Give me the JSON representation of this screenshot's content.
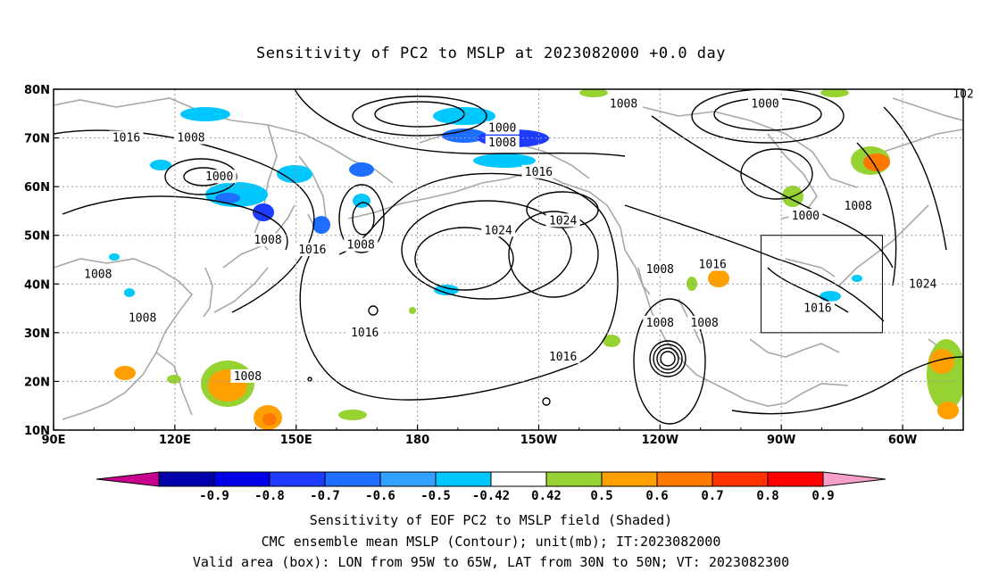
{
  "title": "Sensitivity of PC2 to MSLP at 2023082000 +0.0 day",
  "axes": {
    "x_ticks": [
      {
        "lon": 90,
        "label": "90E"
      },
      {
        "lon": 120,
        "label": "120E"
      },
      {
        "lon": 150,
        "label": "150E"
      },
      {
        "lon": 180,
        "label": "180"
      },
      {
        "lon": 210,
        "label": "150W"
      },
      {
        "lon": 240,
        "label": "120W"
      },
      {
        "lon": 270,
        "label": "90W"
      },
      {
        "lon": 300,
        "label": "60W"
      }
    ],
    "y_ticks": [
      {
        "lat": 10,
        "label": "10N"
      },
      {
        "lat": 20,
        "label": "20N"
      },
      {
        "lat": 30,
        "label": "30N"
      },
      {
        "lat": 40,
        "label": "40N"
      },
      {
        "lat": 50,
        "label": "50N"
      },
      {
        "lat": 60,
        "label": "60N"
      },
      {
        "lat": 70,
        "label": "70N"
      },
      {
        "lat": 80,
        "label": "80N"
      }
    ],
    "lon_range": [
      90,
      315
    ],
    "lat_range": [
      10,
      80
    ],
    "grid": true
  },
  "valid_box": {
    "lon": [
      265,
      295
    ],
    "lat": [
      30,
      50
    ]
  },
  "contour_labels": [
    {
      "text": "1016",
      "lon": 108,
      "lat": 70
    },
    {
      "text": "1008",
      "lon": 124,
      "lat": 70
    },
    {
      "text": "1000",
      "lon": 131,
      "lat": 62
    },
    {
      "text": "1008",
      "lon": 143,
      "lat": 49
    },
    {
      "text": "1008",
      "lon": 101,
      "lat": 42
    },
    {
      "text": "1008",
      "lon": 112,
      "lat": 33
    },
    {
      "text": "1008",
      "lon": 138,
      "lat": 21
    },
    {
      "text": "1016",
      "lon": 154,
      "lat": 47
    },
    {
      "text": "1008",
      "lon": 166,
      "lat": 48
    },
    {
      "text": "1016",
      "lon": 167,
      "lat": 30
    },
    {
      "text": "1000",
      "lon": 201,
      "lat": 72
    },
    {
      "text": "1008",
      "lon": 201,
      "lat": 69
    },
    {
      "text": "1016",
      "lon": 210,
      "lat": 63
    },
    {
      "text": "1008",
      "lon": 231,
      "lat": 77
    },
    {
      "text": "1024",
      "lon": 200,
      "lat": 51
    },
    {
      "text": "1024",
      "lon": 216,
      "lat": 53
    },
    {
      "text": "1016",
      "lon": 216,
      "lat": 25
    },
    {
      "text": "1008",
      "lon": 240,
      "lat": 43
    },
    {
      "text": "1016",
      "lon": 253,
      "lat": 44
    },
    {
      "text": "1008",
      "lon": 240,
      "lat": 32
    },
    {
      "text": "1008",
      "lon": 251,
      "lat": 32
    },
    {
      "text": "1000",
      "lon": 266,
      "lat": 77
    },
    {
      "text": "1000",
      "lon": 276,
      "lat": 54
    },
    {
      "text": "1008",
      "lon": 289,
      "lat": 56
    },
    {
      "text": "1016",
      "lon": 279,
      "lat": 35
    },
    {
      "text": "1024",
      "lon": 305,
      "lat": 40
    },
    {
      "text": "102",
      "lon": 315,
      "lat": 79
    }
  ],
  "colorbar": {
    "levels": [
      "-0.9",
      "-0.8",
      "-0.7",
      "-0.6",
      "-0.5",
      "-0.42",
      "0.42",
      "0.5",
      "0.6",
      "0.7",
      "0.8",
      "0.9"
    ],
    "colors": [
      "#c8008c",
      "#0000aa",
      "#0000e6",
      "#1e3cff",
      "#1e6eff",
      "#32a0ff",
      "#00c8ff",
      "#ffffff",
      "#96d232",
      "#ffa000",
      "#ff7800",
      "#ff3200",
      "#ff0000",
      "#f5a0c8"
    ]
  },
  "captions": {
    "line1": "Sensitivity of EOF PC2 to MSLP field (Shaded)",
    "line2": "CMC ensemble mean MSLP (Contour); unit(mb); IT:2023082000",
    "line3": "Valid area (box): LON from 95W to 65W, LAT from 30N to 50N; VT: 2023082300"
  }
}
